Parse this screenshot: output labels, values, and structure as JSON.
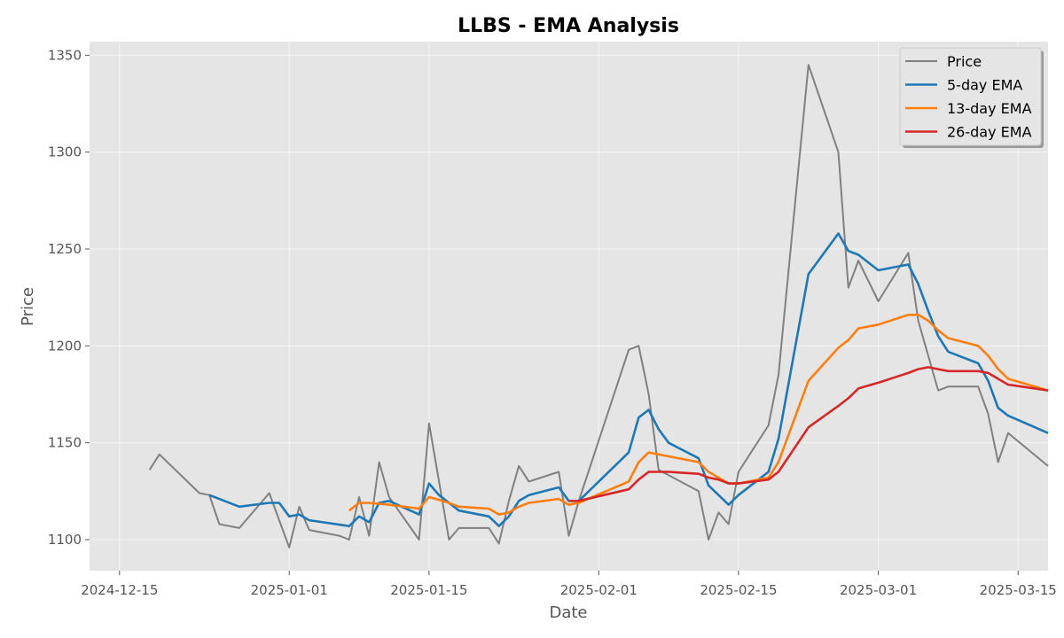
{
  "chart_data": {
    "type": "line",
    "title": "LLBS - EMA Analysis",
    "xlabel": "Date",
    "ylabel": "Price",
    "xlim": [
      "2024-12-12",
      "2025-03-18"
    ],
    "ylim": [
      1084,
      1357
    ],
    "x_ticks": [
      "2024-12-15",
      "2025-01-01",
      "2025-01-15",
      "2025-02-01",
      "2025-02-15",
      "2025-03-01",
      "2025-03-15"
    ],
    "y_ticks": [
      1100,
      1150,
      1200,
      1250,
      1300,
      1350
    ],
    "grid": true,
    "legend_position": "top-right",
    "series": [
      {
        "name": "Price",
        "color": "#808080",
        "points": [
          [
            "2024-12-18",
            1136
          ],
          [
            "2024-12-19",
            1144
          ],
          [
            "2024-12-23",
            1124
          ],
          [
            "2024-12-24",
            1123
          ],
          [
            "2024-12-25",
            1108
          ],
          [
            "2024-12-27",
            1106
          ],
          [
            "2024-12-30",
            1124
          ],
          [
            "2024-12-31",
            1110
          ],
          [
            "2025-01-01",
            1096
          ],
          [
            "2025-01-02",
            1117
          ],
          [
            "2025-01-03",
            1105
          ],
          [
            "2025-01-06",
            1102
          ],
          [
            "2025-01-07",
            1100
          ],
          [
            "2025-01-08",
            1122
          ],
          [
            "2025-01-09",
            1102
          ],
          [
            "2025-01-10",
            1140
          ],
          [
            "2025-01-11",
            1122
          ],
          [
            "2025-01-14",
            1100
          ],
          [
            "2025-01-15",
            1160
          ],
          [
            "2025-01-17",
            1100
          ],
          [
            "2025-01-18",
            1106
          ],
          [
            "2025-01-21",
            1106
          ],
          [
            "2025-01-22",
            1098
          ],
          [
            "2025-01-23",
            1120
          ],
          [
            "2025-01-24",
            1138
          ],
          [
            "2025-01-25",
            1130
          ],
          [
            "2025-01-28",
            1135
          ],
          [
            "2025-01-29",
            1102
          ],
          [
            "2025-01-30",
            1120
          ],
          [
            "2025-02-04",
            1198
          ],
          [
            "2025-02-05",
            1200
          ],
          [
            "2025-02-06",
            1175
          ],
          [
            "2025-02-07",
            1136
          ],
          [
            "2025-02-11",
            1125
          ],
          [
            "2025-02-12",
            1100
          ],
          [
            "2025-02-13",
            1114
          ],
          [
            "2025-02-14",
            1108
          ],
          [
            "2025-02-15",
            1135
          ],
          [
            "2025-02-18",
            1159
          ],
          [
            "2025-02-19",
            1185
          ],
          [
            "2025-02-22",
            1345
          ],
          [
            "2025-02-25",
            1300
          ],
          [
            "2025-02-26",
            1230
          ],
          [
            "2025-02-27",
            1244
          ],
          [
            "2025-03-01",
            1223
          ],
          [
            "2025-03-04",
            1248
          ],
          [
            "2025-03-05",
            1213
          ],
          [
            "2025-03-07",
            1177
          ],
          [
            "2025-03-08",
            1179
          ],
          [
            "2025-03-11",
            1179
          ],
          [
            "2025-03-12",
            1165
          ],
          [
            "2025-03-13",
            1140
          ],
          [
            "2025-03-14",
            1155
          ],
          [
            "2025-03-18",
            1138
          ]
        ]
      },
      {
        "name": "5-day EMA",
        "color": "#1f77b4",
        "points": [
          [
            "2024-12-24",
            1123
          ],
          [
            "2024-12-27",
            1117
          ],
          [
            "2024-12-30",
            1119
          ],
          [
            "2024-12-31",
            1119
          ],
          [
            "2025-01-01",
            1112
          ],
          [
            "2025-01-02",
            1113
          ],
          [
            "2025-01-03",
            1110
          ],
          [
            "2025-01-07",
            1107
          ],
          [
            "2025-01-08",
            1112
          ],
          [
            "2025-01-09",
            1109
          ],
          [
            "2025-01-10",
            1119
          ],
          [
            "2025-01-11",
            1120
          ],
          [
            "2025-01-14",
            1113
          ],
          [
            "2025-01-15",
            1129
          ],
          [
            "2025-01-16",
            1123
          ],
          [
            "2025-01-18",
            1115
          ],
          [
            "2025-01-21",
            1112
          ],
          [
            "2025-01-22",
            1107
          ],
          [
            "2025-01-23",
            1112
          ],
          [
            "2025-01-24",
            1120
          ],
          [
            "2025-01-25",
            1123
          ],
          [
            "2025-01-28",
            1127
          ],
          [
            "2025-01-29",
            1120
          ],
          [
            "2025-01-30",
            1120
          ],
          [
            "2025-02-04",
            1145
          ],
          [
            "2025-02-05",
            1163
          ],
          [
            "2025-02-06",
            1167
          ],
          [
            "2025-02-07",
            1157
          ],
          [
            "2025-02-08",
            1150
          ],
          [
            "2025-02-11",
            1142
          ],
          [
            "2025-02-12",
            1128
          ],
          [
            "2025-02-13",
            1123
          ],
          [
            "2025-02-14",
            1118
          ],
          [
            "2025-02-15",
            1123
          ],
          [
            "2025-02-18",
            1135
          ],
          [
            "2025-02-19",
            1152
          ],
          [
            "2025-02-22",
            1237
          ],
          [
            "2025-02-25",
            1258
          ],
          [
            "2025-02-26",
            1249
          ],
          [
            "2025-02-27",
            1247
          ],
          [
            "2025-03-01",
            1239
          ],
          [
            "2025-03-04",
            1242
          ],
          [
            "2025-03-05",
            1232
          ],
          [
            "2025-03-06",
            1218
          ],
          [
            "2025-03-07",
            1205
          ],
          [
            "2025-03-08",
            1197
          ],
          [
            "2025-03-11",
            1191
          ],
          [
            "2025-03-12",
            1182
          ],
          [
            "2025-03-13",
            1168
          ],
          [
            "2025-03-14",
            1164
          ],
          [
            "2025-03-18",
            1155
          ]
        ]
      },
      {
        "name": "13-day EMA",
        "color": "#ff7f0e",
        "points": [
          [
            "2025-01-07",
            1115
          ],
          [
            "2025-01-08",
            1119
          ],
          [
            "2025-01-09",
            1119
          ],
          [
            "2025-01-11",
            1118
          ],
          [
            "2025-01-14",
            1116
          ],
          [
            "2025-01-15",
            1122
          ],
          [
            "2025-01-17",
            1119
          ],
          [
            "2025-01-18",
            1117
          ],
          [
            "2025-01-21",
            1116
          ],
          [
            "2025-01-22",
            1113
          ],
          [
            "2025-01-23",
            1114
          ],
          [
            "2025-01-24",
            1117
          ],
          [
            "2025-01-25",
            1119
          ],
          [
            "2025-01-28",
            1121
          ],
          [
            "2025-01-29",
            1118
          ],
          [
            "2025-01-30",
            1119
          ],
          [
            "2025-02-04",
            1130
          ],
          [
            "2025-02-05",
            1140
          ],
          [
            "2025-02-06",
            1145
          ],
          [
            "2025-02-07",
            1144
          ],
          [
            "2025-02-08",
            1143
          ],
          [
            "2025-02-11",
            1140
          ],
          [
            "2025-02-12",
            1135
          ],
          [
            "2025-02-13",
            1132
          ],
          [
            "2025-02-14",
            1129
          ],
          [
            "2025-02-15",
            1129
          ],
          [
            "2025-02-18",
            1132
          ],
          [
            "2025-02-19",
            1140
          ],
          [
            "2025-02-22",
            1182
          ],
          [
            "2025-02-25",
            1199
          ],
          [
            "2025-02-26",
            1203
          ],
          [
            "2025-02-27",
            1209
          ],
          [
            "2025-03-01",
            1211
          ],
          [
            "2025-03-04",
            1216
          ],
          [
            "2025-03-05",
            1216
          ],
          [
            "2025-03-06",
            1213
          ],
          [
            "2025-03-07",
            1208
          ],
          [
            "2025-03-08",
            1204
          ],
          [
            "2025-03-11",
            1200
          ],
          [
            "2025-03-12",
            1195
          ],
          [
            "2025-03-13",
            1188
          ],
          [
            "2025-03-14",
            1183
          ],
          [
            "2025-03-18",
            1177
          ]
        ]
      },
      {
        "name": "26-day EMA",
        "color": "#d62728",
        "points": [
          [
            "2025-01-29",
            1120
          ],
          [
            "2025-01-30",
            1120
          ],
          [
            "2025-02-04",
            1126
          ],
          [
            "2025-02-05",
            1131
          ],
          [
            "2025-02-06",
            1135
          ],
          [
            "2025-02-07",
            1135
          ],
          [
            "2025-02-08",
            1135
          ],
          [
            "2025-02-11",
            1134
          ],
          [
            "2025-02-12",
            1132
          ],
          [
            "2025-02-13",
            1131
          ],
          [
            "2025-02-14",
            1129
          ],
          [
            "2025-02-15",
            1129
          ],
          [
            "2025-02-18",
            1131
          ],
          [
            "2025-02-19",
            1135
          ],
          [
            "2025-02-22",
            1158
          ],
          [
            "2025-02-25",
            1169
          ],
          [
            "2025-02-26",
            1173
          ],
          [
            "2025-02-27",
            1178
          ],
          [
            "2025-03-01",
            1181
          ],
          [
            "2025-03-04",
            1186
          ],
          [
            "2025-03-05",
            1188
          ],
          [
            "2025-03-06",
            1189
          ],
          [
            "2025-03-07",
            1188
          ],
          [
            "2025-03-08",
            1187
          ],
          [
            "2025-03-11",
            1187
          ],
          [
            "2025-03-12",
            1186
          ],
          [
            "2025-03-13",
            1183
          ],
          [
            "2025-03-14",
            1180
          ],
          [
            "2025-03-18",
            1177
          ]
        ]
      }
    ]
  }
}
